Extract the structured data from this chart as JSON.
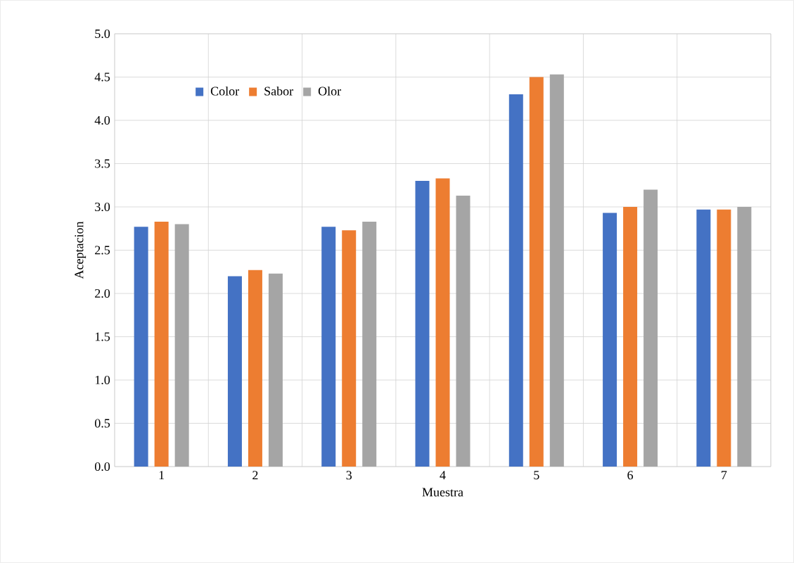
{
  "chart_data": {
    "type": "bar",
    "xlabel": "Muestra",
    "ylabel": "Aceptacion",
    "categories": [
      "1",
      "2",
      "3",
      "4",
      "5",
      "6",
      "7"
    ],
    "series": [
      {
        "name": "Color",
        "color": "#4472c4",
        "values": [
          2.77,
          2.2,
          2.77,
          3.3,
          4.3,
          2.93,
          2.97
        ]
      },
      {
        "name": "Sabor",
        "color": "#ed7d31",
        "values": [
          2.83,
          2.27,
          2.73,
          3.33,
          4.5,
          3.0,
          2.97
        ]
      },
      {
        "name": "Olor",
        "color": "#a5a5a5",
        "values": [
          2.8,
          2.23,
          2.83,
          3.13,
          4.53,
          3.2,
          3.0
        ]
      }
    ],
    "ylim": [
      0,
      5
    ],
    "yticks": [
      {
        "value": 0,
        "label": "0.0"
      },
      {
        "value": 0.5,
        "label": "0.5"
      },
      {
        "value": 1,
        "label": "1.0"
      },
      {
        "value": 1.5,
        "label": "1.5"
      },
      {
        "value": 2,
        "label": "2.0"
      },
      {
        "value": 2.5,
        "label": "2.5"
      },
      {
        "value": 3,
        "label": "3.0"
      },
      {
        "value": 3.5,
        "label": "3.5"
      },
      {
        "value": 4,
        "label": "4.0"
      },
      {
        "value": 4.5,
        "label": "4.5"
      },
      {
        "value": 5,
        "label": "5.0"
      }
    ],
    "grid": true,
    "legend": "top left"
  }
}
